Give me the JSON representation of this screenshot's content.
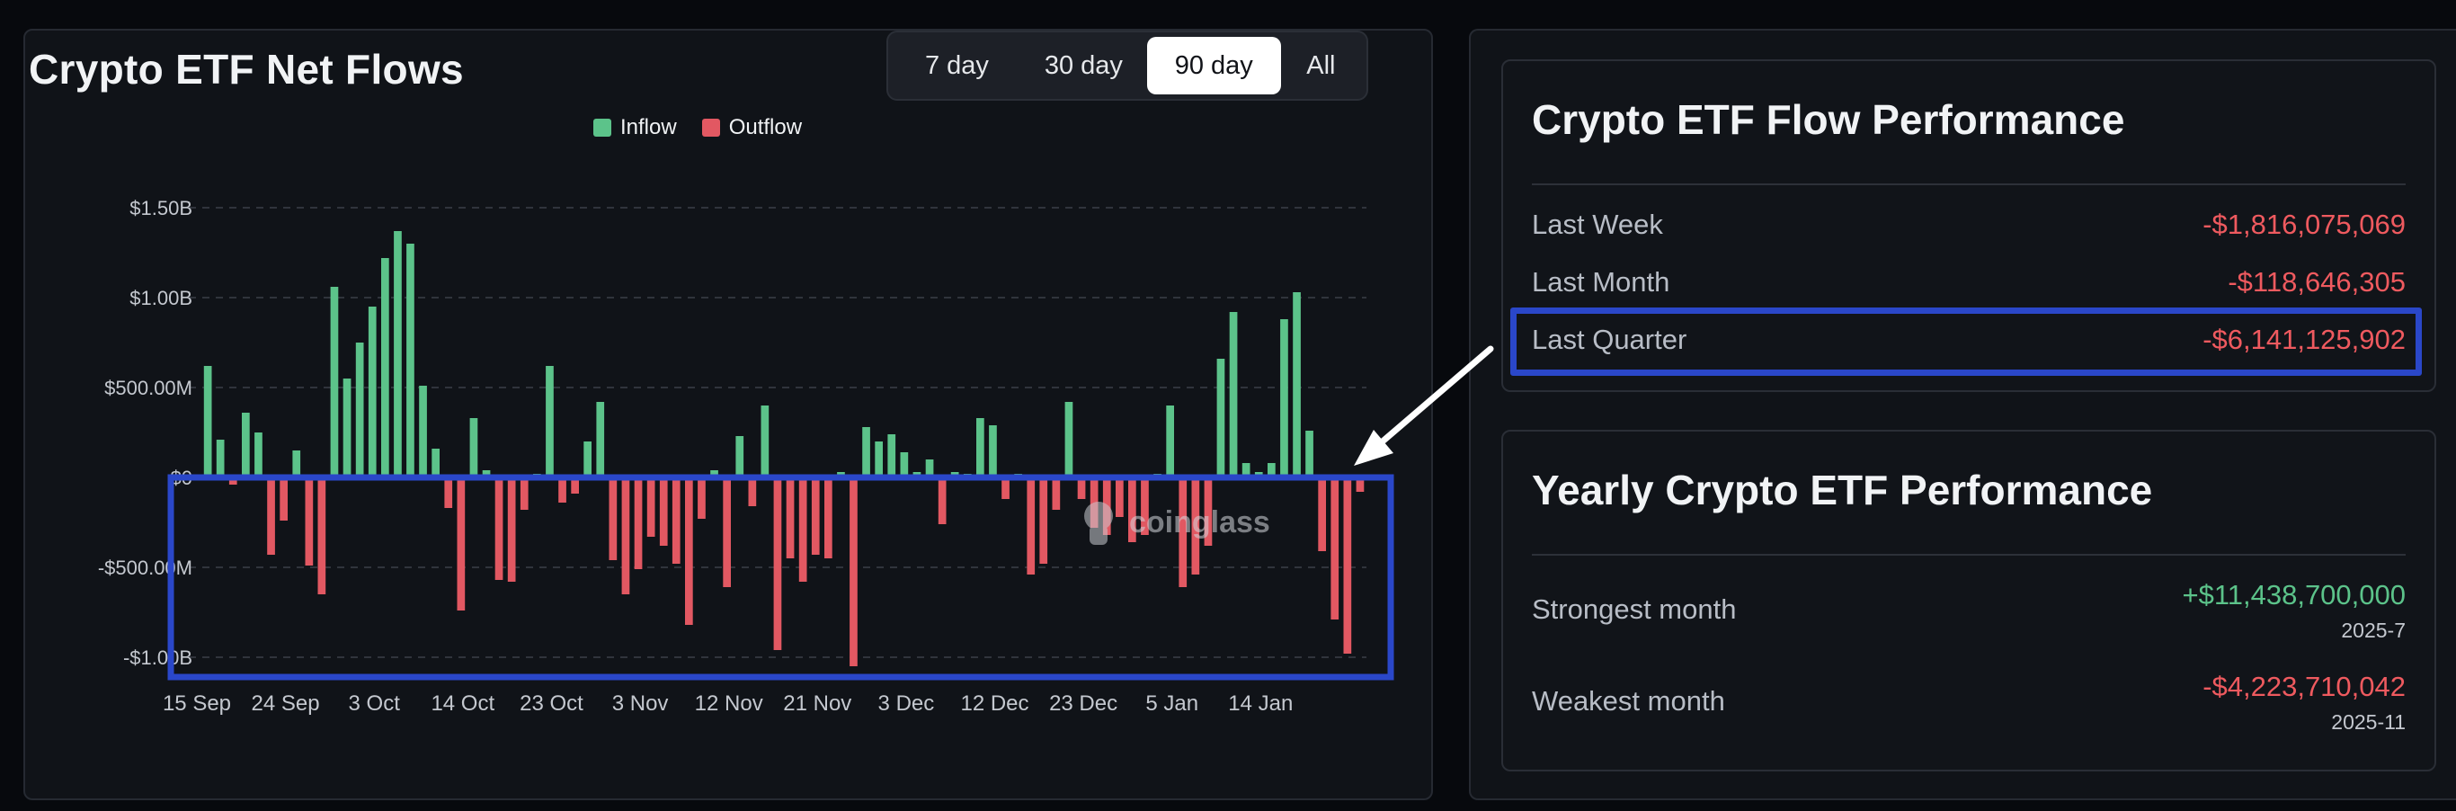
{
  "chart_panel": {
    "title": "Crypto ETF Net Flows",
    "range_buttons": [
      "7 day",
      "30 day",
      "90 day",
      "All"
    ],
    "active_range": "90 day",
    "legend": [
      {
        "label": "Inflow",
        "color": "#5cc38a"
      },
      {
        "label": "Outflow",
        "color": "#e25862"
      }
    ],
    "watermark": "coinglass"
  },
  "chart_data": {
    "type": "bar",
    "ylim": [
      -1.05,
      1.55
    ],
    "yticks": [
      {
        "value": 1.5,
        "label": "$1.50B"
      },
      {
        "value": 1.0,
        "label": "$1.00B"
      },
      {
        "value": 0.5,
        "label": "$500.00M"
      },
      {
        "value": 0.0,
        "label": "$0"
      },
      {
        "value": -0.5,
        "label": "-$500.00M"
      },
      {
        "value": -1.0,
        "label": "-$1.00B"
      }
    ],
    "xticks": [
      {
        "index": 0,
        "label": "15 Sep"
      },
      {
        "index": 7,
        "label": "24 Sep"
      },
      {
        "index": 14,
        "label": "3 Oct"
      },
      {
        "index": 21,
        "label": "14 Oct"
      },
      {
        "index": 28,
        "label": "23 Oct"
      },
      {
        "index": 35,
        "label": "3 Nov"
      },
      {
        "index": 42,
        "label": "12 Nov"
      },
      {
        "index": 49,
        "label": "21 Nov"
      },
      {
        "index": 56,
        "label": "3 Dec"
      },
      {
        "index": 63,
        "label": "12 Dec"
      },
      {
        "index": 70,
        "label": "23 Dec"
      },
      {
        "index": 77,
        "label": "5 Jan"
      },
      {
        "index": 84,
        "label": "14 Jan"
      }
    ],
    "values": [
      0.0,
      0.62,
      0.21,
      -0.04,
      0.36,
      0.25,
      -0.43,
      -0.24,
      0.15,
      -0.49,
      -0.65,
      1.06,
      0.55,
      0.75,
      0.95,
      1.22,
      1.37,
      1.3,
      0.51,
      0.16,
      -0.17,
      -0.74,
      0.33,
      0.04,
      -0.57,
      -0.58,
      -0.18,
      0.02,
      0.62,
      -0.14,
      -0.09,
      0.2,
      0.42,
      -0.46,
      -0.65,
      -0.51,
      -0.33,
      -0.38,
      -0.48,
      -0.82,
      -0.23,
      0.04,
      -0.61,
      0.23,
      -0.16,
      0.4,
      -0.96,
      -0.45,
      -0.58,
      -0.43,
      -0.45,
      0.03,
      -1.05,
      0.28,
      0.2,
      0.24,
      0.14,
      0.03,
      0.1,
      -0.26,
      0.03,
      0.02,
      0.33,
      0.29,
      -0.12,
      0.02,
      -0.54,
      -0.48,
      -0.18,
      0.42,
      -0.12,
      -0.28,
      -0.32,
      -0.22,
      -0.36,
      -0.32,
      0.02,
      0.4,
      -0.61,
      -0.54,
      -0.38,
      0.66,
      0.92,
      0.08,
      0.03,
      0.08,
      0.88,
      1.03,
      0.26,
      -0.41,
      -0.79,
      -0.98,
      -0.08
    ]
  },
  "flow_performance": {
    "title": "Crypto ETF Flow Performance",
    "rows": [
      {
        "label": "Last Week",
        "value": "-$1,816,075,069"
      },
      {
        "label": "Last Month",
        "value": "-$118,646,305"
      },
      {
        "label": "Last Quarter",
        "value": "-$6,141,125,902"
      }
    ]
  },
  "yearly_performance": {
    "title": "Yearly Crypto ETF Performance",
    "strongest": {
      "label": "Strongest month",
      "value": "+$11,438,700,000",
      "period": "2025-7"
    },
    "weakest": {
      "label": "Weakest month",
      "value": "-$4,223,710,042",
      "period": "2025-11"
    }
  },
  "colors": {
    "inflow": "#5cc38a",
    "outflow": "#e25862",
    "highlight": "#2a47c9"
  }
}
